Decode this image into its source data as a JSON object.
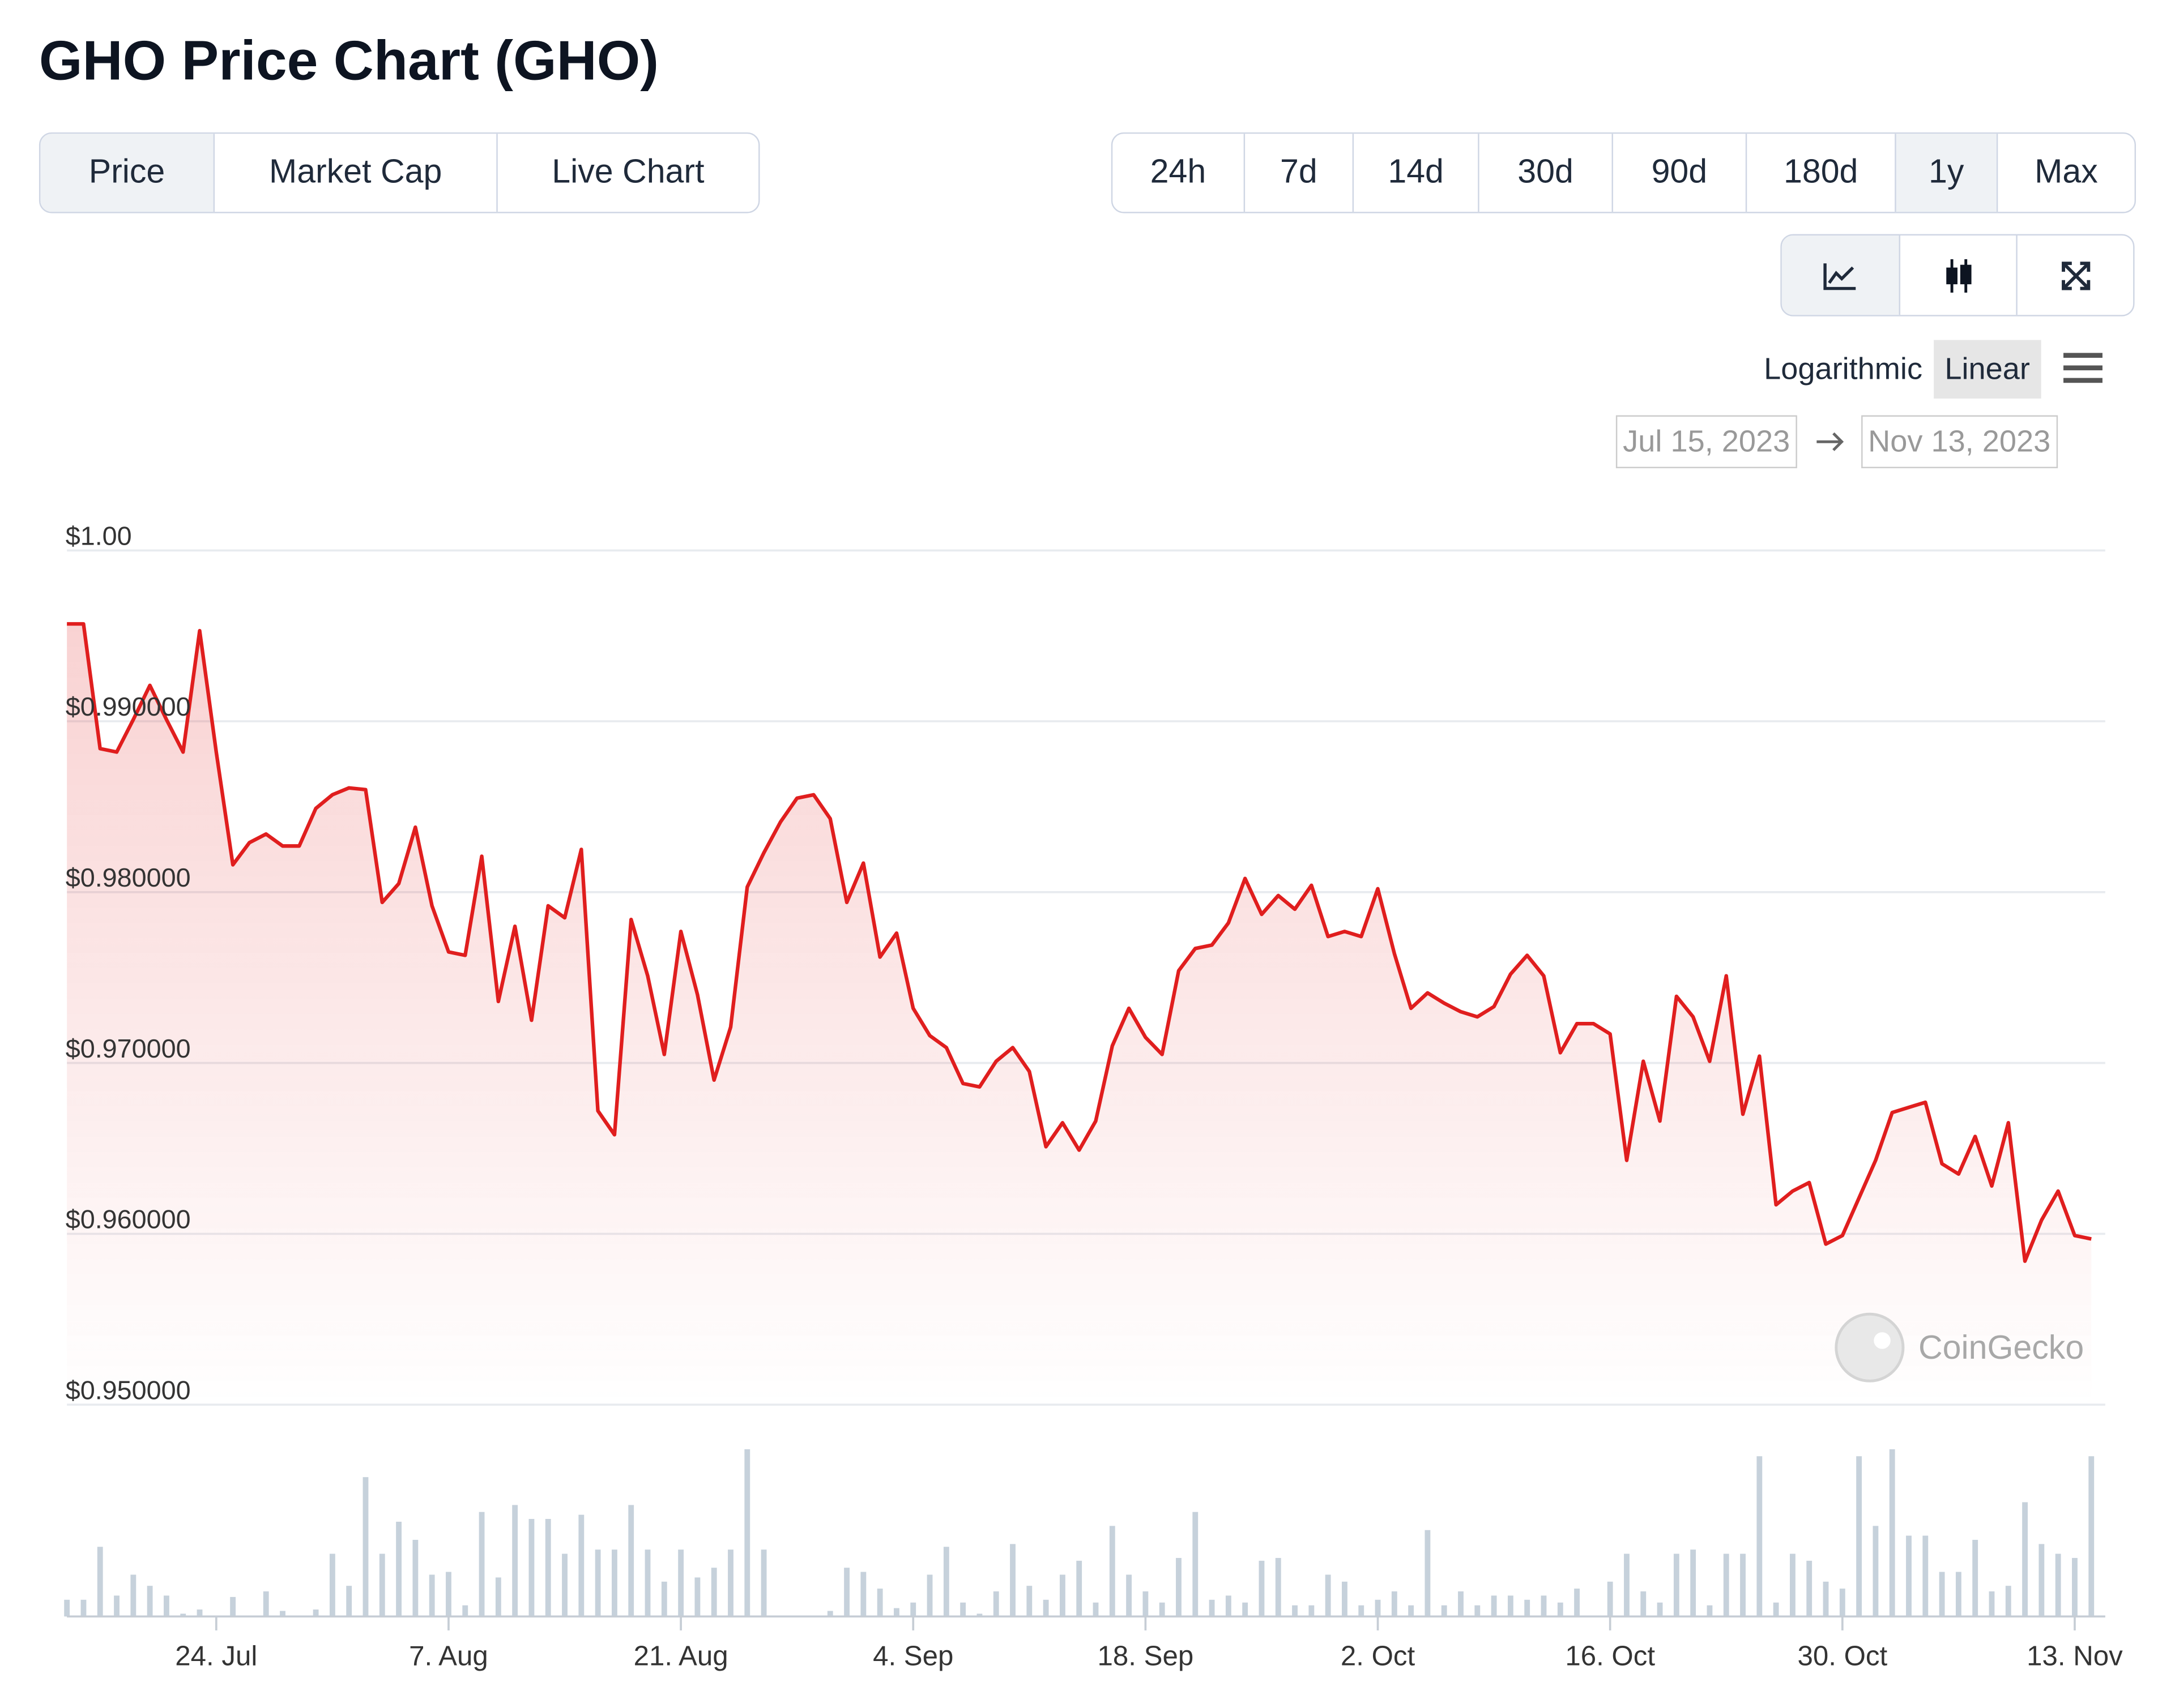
{
  "header": {
    "title": "GHO Price Chart (GHO)"
  },
  "controls": {
    "tabs": [
      "Price",
      "Market Cap",
      "Live Chart"
    ],
    "selected_tab": 0,
    "ranges": [
      "24h",
      "7d",
      "14d",
      "30d",
      "90d",
      "180d",
      "1y",
      "Max"
    ],
    "selected_range": 6,
    "scale_options": [
      "Logarithmic",
      "Linear"
    ],
    "selected_scale": 1,
    "date_range": {
      "from": "Jul 15, 2023",
      "to": "Nov 13, 2023"
    }
  },
  "chart_data": {
    "type": "line",
    "color": "#e01e1e",
    "area": true,
    "log_scale": false,
    "grid": true,
    "watermark": "CoinGecko",
    "x": [
      "2023-07-15",
      "2023-07-16",
      "2023-07-17",
      "2023-07-18",
      "2023-07-19",
      "2023-07-20",
      "2023-07-21",
      "2023-07-22",
      "2023-07-23",
      "2023-07-24",
      "2023-07-25",
      "2023-07-26",
      "2023-07-27",
      "2023-07-28",
      "2023-07-29",
      "2023-07-30",
      "2023-07-31",
      "2023-08-01",
      "2023-08-02",
      "2023-08-03",
      "2023-08-04",
      "2023-08-05",
      "2023-08-06",
      "2023-08-07",
      "2023-08-08",
      "2023-08-09",
      "2023-08-10",
      "2023-08-11",
      "2023-08-12",
      "2023-08-13",
      "2023-08-14",
      "2023-08-15",
      "2023-08-16",
      "2023-08-17",
      "2023-08-18",
      "2023-08-19",
      "2023-08-20",
      "2023-08-21",
      "2023-08-22",
      "2023-08-23",
      "2023-08-24",
      "2023-08-25",
      "2023-08-26",
      "2023-08-27",
      "2023-08-28",
      "2023-08-29",
      "2023-08-30",
      "2023-08-31",
      "2023-09-01",
      "2023-09-02",
      "2023-09-03",
      "2023-09-04",
      "2023-09-05",
      "2023-09-06",
      "2023-09-07",
      "2023-09-08",
      "2023-09-09",
      "2023-09-10",
      "2023-09-11",
      "2023-09-12",
      "2023-09-13",
      "2023-09-14",
      "2023-09-15",
      "2023-09-16",
      "2023-09-17",
      "2023-09-18",
      "2023-09-19",
      "2023-09-20",
      "2023-09-21",
      "2023-09-22",
      "2023-09-23",
      "2023-09-24",
      "2023-09-25",
      "2023-09-26",
      "2023-09-27",
      "2023-09-28",
      "2023-09-29",
      "2023-09-30",
      "2023-10-01",
      "2023-10-02",
      "2023-10-03",
      "2023-10-04",
      "2023-10-05",
      "2023-10-06",
      "2023-10-07",
      "2023-10-08",
      "2023-10-09",
      "2023-10-10",
      "2023-10-11",
      "2023-10-12",
      "2023-10-13",
      "2023-10-14",
      "2023-10-15",
      "2023-10-16",
      "2023-10-17",
      "2023-10-18",
      "2023-10-19",
      "2023-10-20",
      "2023-10-21",
      "2023-10-22",
      "2023-10-23",
      "2023-10-24",
      "2023-10-25",
      "2023-10-26",
      "2023-10-27",
      "2023-10-28",
      "2023-10-29",
      "2023-10-30",
      "2023-10-31",
      "2023-11-01",
      "2023-11-02",
      "2023-11-03",
      "2023-11-04",
      "2023-11-05",
      "2023-11-06",
      "2023-11-07",
      "2023-11-08",
      "2023-11-09",
      "2023-11-10",
      "2023-11-11",
      "2023-11-12",
      "2023-11-13",
      "2023-11-14"
    ],
    "values": [
      0.9957,
      0.9957,
      0.9884,
      0.9882,
      0.9901,
      0.9921,
      0.9901,
      0.9882,
      0.9953,
      0.9882,
      0.9816,
      0.9829,
      0.9834,
      0.9827,
      0.9827,
      0.9849,
      0.9857,
      0.9861,
      0.986,
      0.9794,
      0.9805,
      0.9838,
      0.9792,
      0.9765,
      0.9763,
      0.9821,
      0.9736,
      0.978,
      0.9725,
      0.9792,
      0.9785,
      0.9825,
      0.9672,
      0.9658,
      0.9784,
      0.9751,
      0.9705,
      0.9777,
      0.974,
      0.969,
      0.9721,
      0.9803,
      0.9823,
      0.9841,
      0.9855,
      0.9857,
      0.9843,
      0.9794,
      0.9817,
      0.9762,
      0.9776,
      0.9732,
      0.9716,
      0.9709,
      0.9688,
      0.9686,
      0.9701,
      0.9709,
      0.9695,
      0.9651,
      0.9665,
      0.9649,
      0.9666,
      0.971,
      0.9732,
      0.9715,
      0.9705,
      0.9754,
      0.9767,
      0.9769,
      0.9782,
      0.9808,
      0.9787,
      0.9798,
      0.979,
      0.9804,
      0.9774,
      0.9777,
      0.9774,
      0.9802,
      0.9764,
      0.9732,
      0.9741,
      0.9735,
      0.973,
      0.9727,
      0.9733,
      0.9752,
      0.9763,
      0.9751,
      0.9706,
      0.9723,
      0.9723,
      0.9717,
      0.9643,
      0.9701,
      0.9666,
      0.9739,
      0.9727,
      0.9701,
      0.9751,
      0.967,
      0.9704,
      0.9617,
      0.9625,
      0.963,
      0.9594,
      0.9599,
      0.9621,
      0.9643,
      0.9671,
      0.9674,
      0.9677,
      0.9641,
      0.9635,
      0.9657,
      0.9628,
      0.9665,
      0.9584,
      0.9608,
      0.9625,
      0.9599,
      0.9597
    ],
    "volume_color": "#c6d1db",
    "volume": [
      12,
      12,
      50,
      15,
      30,
      22,
      15,
      2,
      5,
      0,
      14,
      0,
      18,
      4,
      0,
      5,
      45,
      22,
      100,
      45,
      68,
      55,
      30,
      32,
      8,
      75,
      28,
      80,
      70,
      70,
      45,
      73,
      48,
      48,
      80,
      48,
      25,
      48,
      28,
      35,
      48,
      120,
      48,
      0,
      0,
      0,
      4,
      35,
      32,
      20,
      6,
      10,
      30,
      50,
      10,
      2,
      18,
      52,
      22,
      12,
      30,
      40,
      10,
      65,
      30,
      18,
      10,
      42,
      75,
      12,
      15,
      10,
      40,
      42,
      8,
      8,
      30,
      25,
      8,
      12,
      18,
      8,
      62,
      8,
      18,
      8,
      15,
      15,
      12,
      15,
      10,
      20,
      0,
      25,
      45,
      18,
      10,
      45,
      48,
      8,
      45,
      45,
      115,
      10,
      45,
      40,
      25,
      20,
      115,
      65,
      120,
      58,
      58,
      32,
      32,
      55,
      18,
      22,
      82,
      52,
      45,
      42,
      115
    ],
    "xlim": [
      "2023-07-15",
      "2023-11-14"
    ],
    "xticks": [
      {
        "value": "2023-07-24",
        "label": "24. Jul"
      },
      {
        "value": "2023-08-07",
        "label": "7. Aug"
      },
      {
        "value": "2023-08-21",
        "label": "21. Aug"
      },
      {
        "value": "2023-09-04",
        "label": "4. Sep"
      },
      {
        "value": "2023-09-18",
        "label": "18. Sep"
      },
      {
        "value": "2023-10-02",
        "label": "2. Oct"
      },
      {
        "value": "2023-10-16",
        "label": "16. Oct"
      },
      {
        "value": "2023-10-30",
        "label": "30. Oct"
      },
      {
        "value": "2023-11-13",
        "label": "13. Nov"
      }
    ],
    "ylim": [
      0.95,
      1.0
    ],
    "yticks": [
      {
        "value": 0.95,
        "label": "$0.950000"
      },
      {
        "value": 0.96,
        "label": "$0.960000"
      },
      {
        "value": 0.97,
        "label": "$0.970000"
      },
      {
        "value": 0.98,
        "label": "$0.980000"
      },
      {
        "value": 0.99,
        "label": "$0.990000"
      },
      {
        "value": 1.0,
        "label": "$1.00"
      }
    ]
  }
}
